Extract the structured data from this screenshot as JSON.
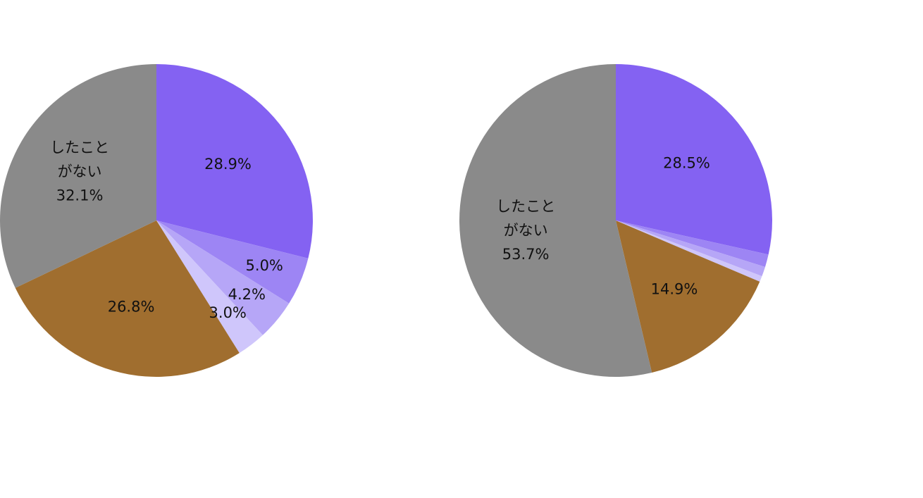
{
  "chart_data": [
    {
      "type": "pie",
      "categories": [
        null,
        null,
        null,
        null,
        null,
        "したこと\nがない"
      ],
      "values": [
        28.9,
        5.0,
        4.2,
        3.0,
        26.8,
        32.1
      ],
      "value_labels": [
        "28.9%",
        "5.0%",
        "4.2%",
        "3.0%",
        "26.8%",
        "32.1%"
      ],
      "colors": [
        "#8462f2",
        "#9d85f4",
        "#b6a6f7",
        "#cfc6fb",
        "#a06e2f",
        "#8a8a8a"
      ]
    },
    {
      "type": "pie",
      "categories": [
        null,
        null,
        null,
        null,
        null,
        "したこと\nがない"
      ],
      "values": [
        28.5,
        1.3,
        1.0,
        0.6,
        14.9,
        53.7
      ],
      "value_labels": [
        "28.5%",
        null,
        null,
        null,
        "14.9%",
        "53.7%"
      ],
      "colors": [
        "#8462f2",
        "#9d85f4",
        "#b6a6f7",
        "#cfc6fb",
        "#a06e2f",
        "#8a8a8a"
      ]
    }
  ]
}
